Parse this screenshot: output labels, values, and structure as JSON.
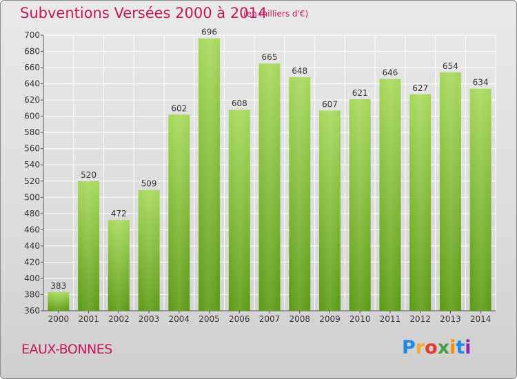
{
  "header": {
    "title": "Subventions Versées 2000 à 2014",
    "subtitle": "(en milliers d'€)"
  },
  "footer": {
    "commune": "EAUX-BONNES",
    "logo_letters": [
      "P",
      "r",
      "o",
      "x",
      "i",
      "t",
      "i"
    ]
  },
  "colors": {
    "title": "#c2185b",
    "bar_top": "#a6d85a",
    "bar_bottom": "#5a9a12"
  },
  "chart_data": {
    "type": "bar",
    "title": "Subventions Versées 2000 à 2014",
    "subtitle": "(en milliers d'€)",
    "categories": [
      "2000",
      "2001",
      "2002",
      "2003",
      "2004",
      "2005",
      "2006",
      "2007",
      "2008",
      "2009",
      "2010",
      "2011",
      "2012",
      "2013",
      "2014"
    ],
    "values": [
      383,
      520,
      472,
      509,
      602,
      696,
      608,
      665,
      648,
      607,
      621,
      646,
      627,
      654,
      634
    ],
    "ylim": [
      360,
      700
    ],
    "yticks": [
      360,
      380,
      400,
      420,
      440,
      460,
      480,
      500,
      520,
      540,
      560,
      580,
      600,
      620,
      640,
      660,
      680,
      700
    ],
    "grid": true,
    "xlabel": "",
    "ylabel": ""
  }
}
